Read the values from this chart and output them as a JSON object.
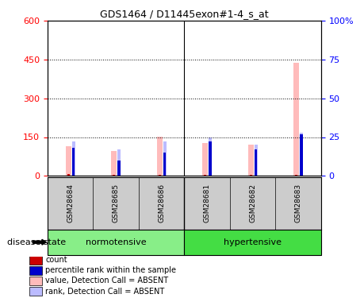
{
  "title": "GDS1464 / D11445exon#1-4_s_at",
  "samples": [
    "GSM28684",
    "GSM28685",
    "GSM28686",
    "GSM28681",
    "GSM28682",
    "GSM28683"
  ],
  "values_absent": [
    115,
    95,
    152,
    128,
    120,
    437
  ],
  "rank_absent_pct": [
    22,
    17,
    22,
    25,
    20,
    28
  ],
  "count_red": [
    8,
    5,
    5,
    5,
    5,
    5
  ],
  "rank_blue_pct": [
    18,
    10,
    15,
    22,
    17,
    27
  ],
  "ylim_left": [
    0,
    600
  ],
  "ylim_right": [
    0,
    100
  ],
  "yticks_left": [
    0,
    150,
    300,
    450,
    600
  ],
  "yticks_right": [
    0,
    25,
    50,
    75,
    100
  ],
  "ytick_labels_right": [
    "0",
    "25",
    "50",
    "75",
    "100%"
  ],
  "absent_bar_color": "#ffbbbb",
  "rank_absent_color": "#bbbbff",
  "count_color": "#cc0000",
  "rank_color": "#0000cc",
  "bar_bg_color": "#cccccc",
  "norm_color": "#88ee88",
  "hyp_color": "#44dd44",
  "legend_items": [
    {
      "label": "count",
      "color": "#cc0000"
    },
    {
      "label": "percentile rank within the sample",
      "color": "#0000cc"
    },
    {
      "label": "value, Detection Call = ABSENT",
      "color": "#ffbbbb"
    },
    {
      "label": "rank, Detection Call = ABSENT",
      "color": "#bbbbff"
    }
  ],
  "disease_state_label": "disease state",
  "group_label_normotensive": "normotensive",
  "group_label_hypertensive": "hypertensive"
}
